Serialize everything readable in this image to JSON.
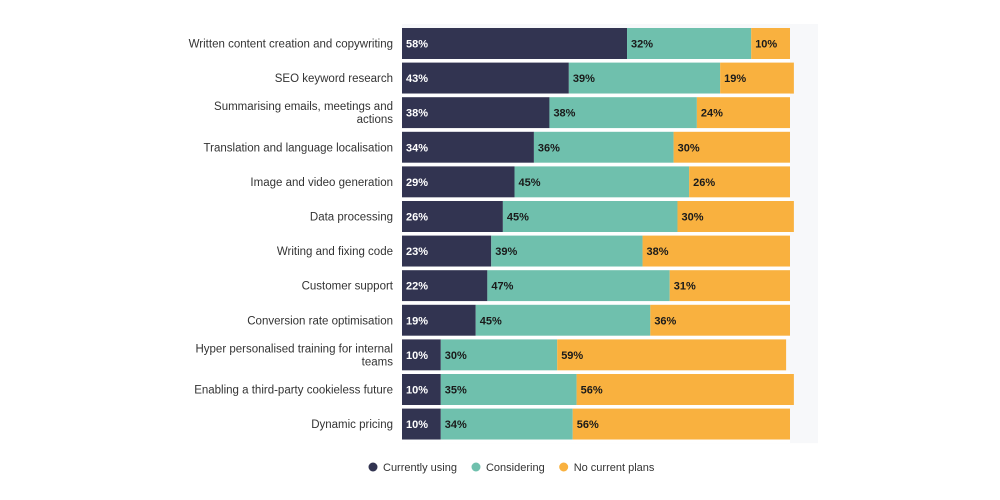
{
  "colors": {
    "currently_using": "#323451",
    "considering": "#6fc0ad",
    "no_current_plans": "#f9b13f",
    "label_on_dark": "#ffffff",
    "label_on_light": "#1a1a1a"
  },
  "chart_data": {
    "type": "bar",
    "orientation": "horizontal",
    "stacked": true,
    "title": "",
    "xlabel": "",
    "ylabel": "",
    "xlim": [
      0,
      100
    ],
    "grid": false,
    "legend_position": "bottom",
    "categories": [
      "Written content creation and copywriting",
      "SEO keyword research",
      "Summarising emails, meetings and actions",
      "Translation and language localisation",
      "Image and video generation",
      "Data processing",
      "Writing and fixing code",
      "Customer support",
      "Conversion rate optimisation",
      "Hyper personalised training for internal teams",
      "Enabling a third-party cookieless future",
      "Dynamic pricing"
    ],
    "series": [
      {
        "name": "Currently using",
        "color_key": "currently_using",
        "values": [
          58,
          43,
          38,
          34,
          29,
          26,
          23,
          22,
          19,
          10,
          10,
          10
        ]
      },
      {
        "name": "Considering",
        "color_key": "considering",
        "values": [
          32,
          39,
          38,
          36,
          45,
          45,
          39,
          47,
          45,
          30,
          35,
          34
        ]
      },
      {
        "name": "No current plans",
        "color_key": "no_current_plans",
        "values": [
          10,
          19,
          24,
          30,
          26,
          30,
          38,
          31,
          36,
          59,
          56,
          56
        ]
      }
    ],
    "value_suffix": "%"
  }
}
